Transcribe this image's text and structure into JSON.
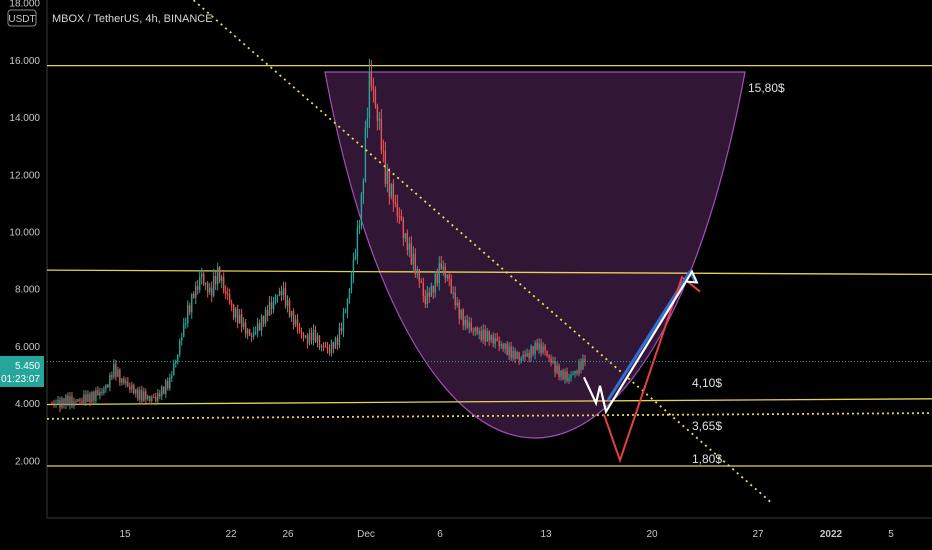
{
  "header": {
    "title": "MBOX / TetherUS, 4h, BINANCE",
    "currency_badge": "USDT"
  },
  "price_badge": {
    "price": "5.450",
    "countdown": "01:23:07",
    "color": "#26a69a"
  },
  "colors": {
    "background": "#000000",
    "up_candle": "#26a69a",
    "down_candle": "#ef5350",
    "level_line": "#e3d354",
    "cup_fill": "#3b1a40",
    "cup_stroke": "#a04fb8",
    "trend_line": "#e8e04a",
    "blue_path": "#2f6fd6",
    "white_path": "#ffffff",
    "red_path": "#e84040"
  },
  "annotations": [
    {
      "label": "15,80$"
    },
    {
      "label": "4,10$"
    },
    {
      "label": "3,65$"
    },
    {
      "label": "1,80$"
    }
  ],
  "chart_data": {
    "type": "candlestick",
    "title": "MBOX / TetherUS, 4h, BINANCE",
    "y_ticks": [
      "2.000",
      "4.000",
      "6.000",
      "8.000",
      "10.000",
      "12.000",
      "14.000",
      "16.000",
      "18.000"
    ],
    "x_ticks": [
      "15",
      "22",
      "26",
      "Dec",
      "6",
      "13",
      "20",
      "27",
      "2022",
      "5"
    ],
    "ylim": [
      0,
      18.5
    ],
    "last_price": 5.45,
    "horizontal_levels": [
      {
        "y_start": 15.8,
        "y_end": 15.8
      },
      {
        "y_start": 8.65,
        "y_end": 8.5
      },
      {
        "y_start": 3.95,
        "y_end": 4.15
      },
      {
        "y_start": 1.8,
        "y_end": 1.8
      },
      {
        "y_start": 3.45,
        "y_end": 3.65,
        "style": "dotted"
      }
    ],
    "trend_line": {
      "style": "dotted",
      "from_y": 18.5,
      "to_y": 0.5
    },
    "projected_paths": {
      "white": [
        4.9,
        4.0,
        4.6,
        3.7,
        8.6
      ],
      "blue": [
        4.1,
        8.6
      ],
      "red": [
        3.6,
        2.0,
        8.4,
        7.9
      ]
    },
    "price_path": [
      4.0,
      3.95,
      4.1,
      4.05,
      4.15,
      4.2,
      4.3,
      4.5,
      5.2,
      4.8,
      4.6,
      4.3,
      4.2,
      4.1,
      4.4,
      4.8,
      5.8,
      7.0,
      7.8,
      8.4,
      7.8,
      8.6,
      7.9,
      7.2,
      6.8,
      6.3,
      6.6,
      7.1,
      7.6,
      8.0,
      7.2,
      6.6,
      6.2,
      6.4,
      6.0,
      5.9,
      6.2,
      7.2,
      8.8,
      11.0,
      15.5,
      14.2,
      12.0,
      11.1,
      10.2,
      9.3,
      8.6,
      7.6,
      8.1,
      8.8,
      8.2,
      7.3,
      6.8,
      6.6,
      6.4,
      6.3,
      6.1,
      5.9,
      5.7,
      5.6,
      5.75,
      6.0,
      5.8,
      5.3,
      5.0,
      4.9,
      5.2,
      5.45
    ]
  }
}
